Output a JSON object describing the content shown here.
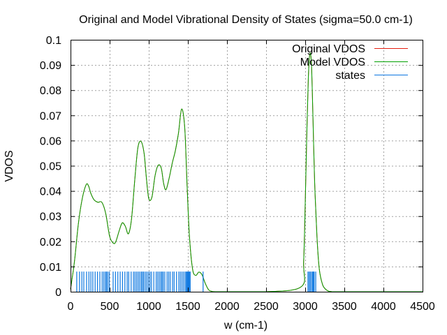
{
  "chart_data": {
    "type": "line",
    "title": "Original and Model Vibrational Density of States (sigma=50.0 cm-1)",
    "xlabel": "w (cm-1)",
    "ylabel": "VDOS",
    "xlim": [
      0,
      4500
    ],
    "ylim": [
      0,
      0.1
    ],
    "grid": true,
    "legend_position": "top-right",
    "x_ticks": [
      0,
      500,
      1000,
      1500,
      2000,
      2500,
      3000,
      3500,
      4000,
      4500
    ],
    "x_tick_labels": [
      "0",
      "500",
      "1000",
      "1500",
      "2000",
      "2500",
      "3000",
      "3500",
      "4000",
      "4500"
    ],
    "y_ticks": [
      0,
      0.01,
      0.02,
      0.03,
      0.04,
      0.05,
      0.06,
      0.07,
      0.08,
      0.09,
      0.1
    ],
    "y_tick_labels": [
      "0",
      "0.01",
      "0.02",
      "0.03",
      "0.04",
      "0.05",
      "0.06",
      "0.07",
      "0.08",
      "0.09",
      "0.1"
    ],
    "series": [
      {
        "name": "Original VDOS",
        "color": "#e51e10",
        "x": [
          0,
          50,
          100,
          150,
          200,
          230,
          260,
          300,
          350,
          400,
          450,
          500,
          550,
          580,
          620,
          660,
          700,
          740,
          780,
          820,
          860,
          900,
          940,
          970,
          1000,
          1040,
          1080,
          1120,
          1160,
          1190,
          1220,
          1260,
          1300,
          1340,
          1380,
          1420,
          1460,
          1490,
          1520,
          1560,
          1600,
          1640,
          1680,
          1720,
          1760,
          1800,
          1900,
          2500,
          2950,
          2980,
          3000,
          3020,
          3040,
          3060,
          3080,
          3100,
          3120,
          3150,
          3180,
          3220,
          3260,
          3300,
          3350,
          3400,
          4500
        ],
        "y": [
          0.001,
          0.012,
          0.027,
          0.037,
          0.0425,
          0.042,
          0.039,
          0.0365,
          0.0355,
          0.0355,
          0.031,
          0.022,
          0.0192,
          0.02,
          0.024,
          0.0273,
          0.026,
          0.023,
          0.029,
          0.044,
          0.057,
          0.0597,
          0.055,
          0.045,
          0.037,
          0.0375,
          0.046,
          0.0502,
          0.049,
          0.043,
          0.0405,
          0.045,
          0.051,
          0.056,
          0.063,
          0.0725,
          0.065,
          0.042,
          0.022,
          0.009,
          0.0065,
          0.0078,
          0.0068,
          0.0035,
          0.001,
          0.0002,
          0,
          0,
          0.002,
          0.012,
          0.035,
          0.062,
          0.085,
          0.0945,
          0.09,
          0.068,
          0.044,
          0.022,
          0.009,
          0.003,
          0.001,
          0.0002,
          0,
          0,
          0
        ]
      },
      {
        "name": "Model VDOS",
        "color": "#00a000",
        "x": [
          0,
          50,
          100,
          150,
          200,
          230,
          260,
          300,
          350,
          400,
          450,
          500,
          550,
          580,
          620,
          660,
          700,
          740,
          780,
          820,
          860,
          900,
          940,
          970,
          1000,
          1040,
          1080,
          1120,
          1160,
          1190,
          1220,
          1260,
          1300,
          1340,
          1380,
          1420,
          1460,
          1490,
          1520,
          1560,
          1600,
          1640,
          1680,
          1720,
          1760,
          1800,
          1900,
          2500,
          2950,
          2980,
          3000,
          3020,
          3040,
          3060,
          3080,
          3100,
          3120,
          3150,
          3180,
          3220,
          3260,
          3300,
          3350,
          3400,
          4500
        ],
        "y": [
          0.001,
          0.012,
          0.027,
          0.037,
          0.0425,
          0.042,
          0.039,
          0.0365,
          0.0355,
          0.0355,
          0.031,
          0.022,
          0.0192,
          0.02,
          0.024,
          0.0273,
          0.026,
          0.023,
          0.029,
          0.044,
          0.057,
          0.0597,
          0.055,
          0.045,
          0.037,
          0.0375,
          0.046,
          0.0502,
          0.049,
          0.043,
          0.0405,
          0.045,
          0.051,
          0.056,
          0.063,
          0.0725,
          0.065,
          0.042,
          0.022,
          0.009,
          0.0065,
          0.0078,
          0.0068,
          0.0035,
          0.001,
          0.0002,
          0,
          0,
          0.002,
          0.012,
          0.035,
          0.062,
          0.085,
          0.0945,
          0.09,
          0.068,
          0.044,
          0.022,
          0.009,
          0.003,
          0.001,
          0.0002,
          0,
          0,
          0
        ]
      },
      {
        "name": "states",
        "color": "#0a76e0",
        "type": "impulse",
        "height": 0.008,
        "x": [
          75,
          110,
          140,
          165,
          200,
          230,
          255,
          280,
          310,
          340,
          370,
          400,
          420,
          440,
          455,
          470,
          490,
          540,
          570,
          600,
          630,
          660,
          690,
          720,
          740,
          770,
          800,
          820,
          840,
          860,
          880,
          900,
          915,
          930,
          950,
          970,
          990,
          1010,
          1030,
          1060,
          1090,
          1110,
          1130,
          1150,
          1165,
          1180,
          1200,
          1230,
          1250,
          1270,
          1300,
          1320,
          1350,
          1380,
          1400,
          1420,
          1440,
          1460,
          1475,
          1485,
          1495,
          1505,
          1515,
          1525,
          1690,
          3030,
          3045,
          3060,
          3075,
          3090,
          3100,
          3110,
          3130
        ]
      }
    ]
  }
}
